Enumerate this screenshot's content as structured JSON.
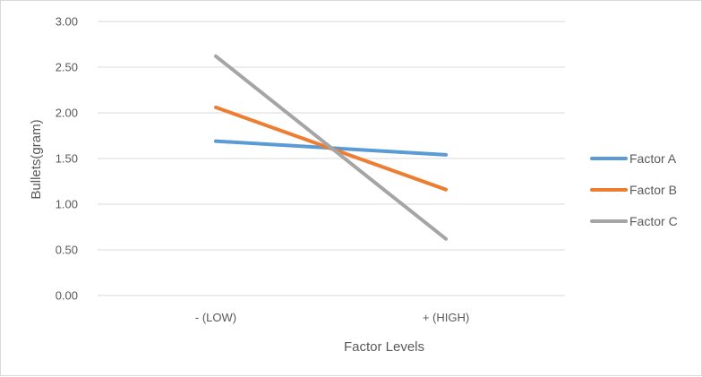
{
  "chart_data": {
    "type": "line",
    "title": "",
    "xlabel": "Factor Levels",
    "ylabel": "Bullets(gram)",
    "categories": [
      "- (LOW)",
      "+ (HIGH)"
    ],
    "ylim": [
      0,
      3
    ],
    "y_ticks": [
      "0.00",
      "0.50",
      "1.00",
      "1.50",
      "2.00",
      "2.50",
      "3.00"
    ],
    "grid": true,
    "legend_position": "right",
    "series": [
      {
        "name": "Factor A",
        "values": [
          1.69,
          1.54
        ],
        "color": "#5b9bd5"
      },
      {
        "name": "Factor B",
        "values": [
          2.06,
          1.16
        ],
        "color": "#ed7d31"
      },
      {
        "name": "Factor C",
        "values": [
          2.62,
          0.62
        ],
        "color": "#a5a5a5"
      }
    ]
  }
}
